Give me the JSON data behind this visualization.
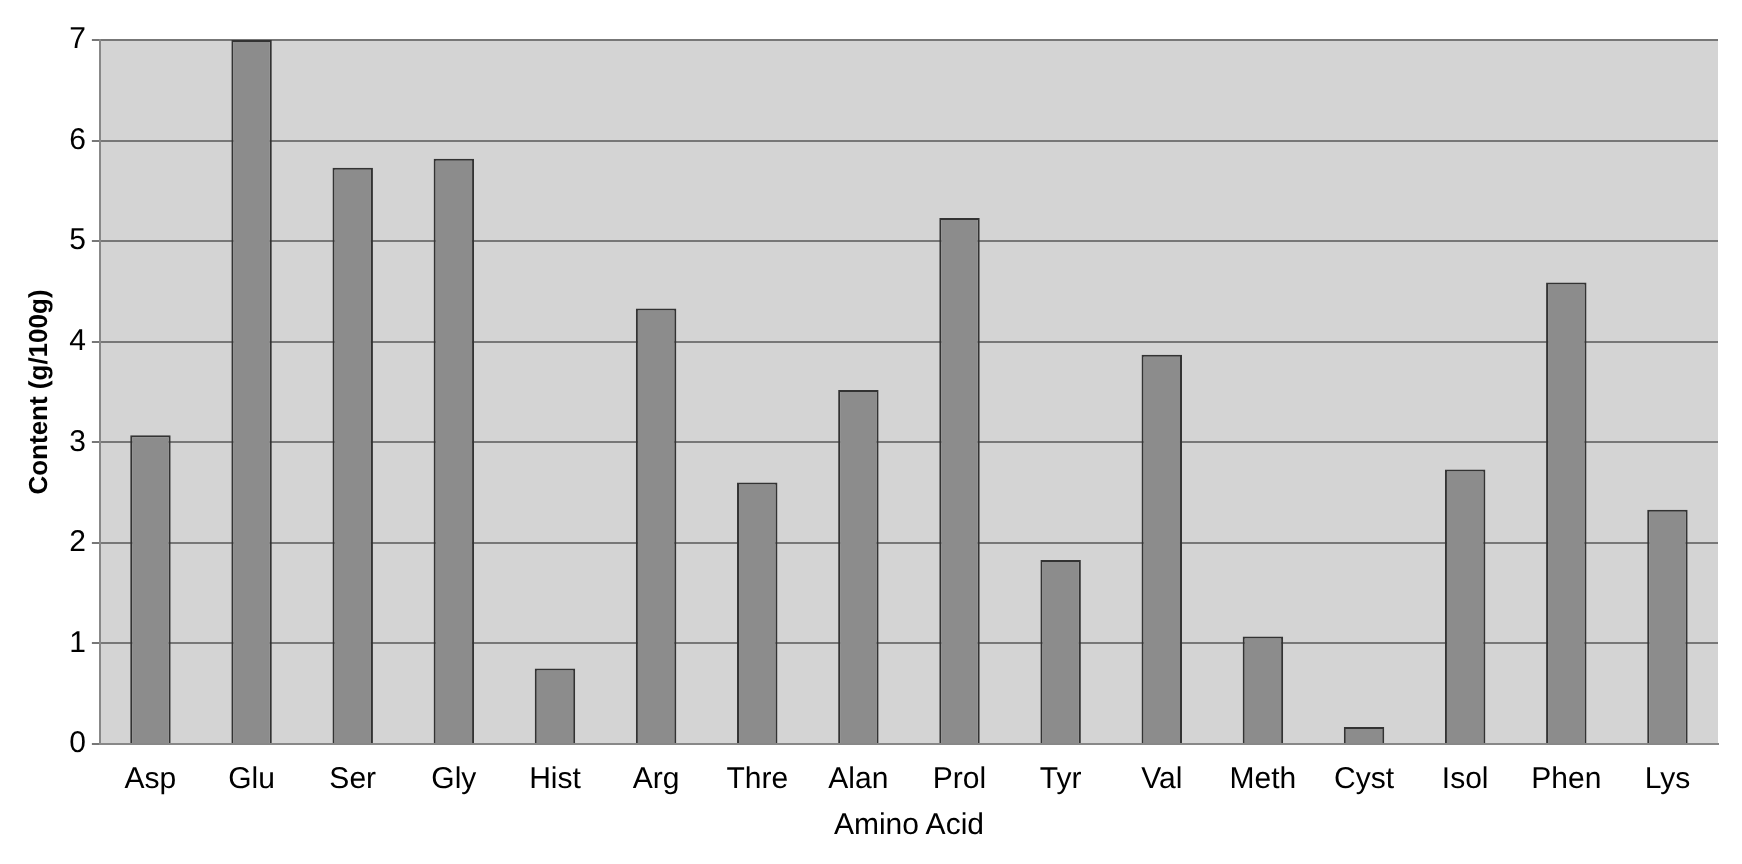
{
  "chart_data": {
    "type": "bar",
    "xlabel": "Amino Acid",
    "ylabel": "Content (g/100g)",
    "categories": [
      "Asp",
      "Glu",
      "Ser",
      "Gly",
      "Hist",
      "Arg",
      "Thre",
      "Alan",
      "Prol",
      "Tyr",
      "Val",
      "Meth",
      "Cyst",
      "Isol",
      "Phen",
      "Lys"
    ],
    "values": [
      3.07,
      7.0,
      5.73,
      5.82,
      0.75,
      4.33,
      2.6,
      3.52,
      5.23,
      1.83,
      3.87,
      1.07,
      0.17,
      2.73,
      4.59,
      2.33
    ],
    "color": "#8c8c8c",
    "ylim": [
      0,
      7
    ],
    "yticks": [
      0,
      1,
      2,
      3,
      4,
      5,
      6,
      7
    ],
    "grid": "y",
    "legend": false
  }
}
